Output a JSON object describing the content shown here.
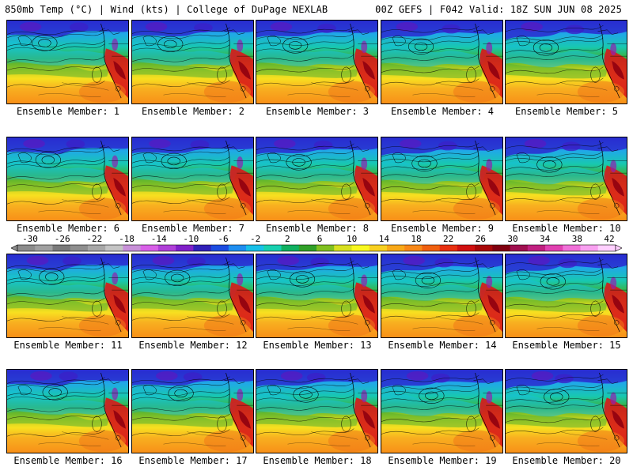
{
  "header": {
    "left": "850mb Temp (°C) | Wind (kts) | College of DuPage NEXLAB",
    "right": "00Z GEFS | F042 Valid: 18Z SUN JUN 08 2025"
  },
  "panels": [
    {
      "label": "Ensemble Member: 1"
    },
    {
      "label": "Ensemble Member: 2"
    },
    {
      "label": "Ensemble Member: 3"
    },
    {
      "label": "Ensemble Member: 4"
    },
    {
      "label": "Ensemble Member: 5"
    },
    {
      "label": "Ensemble Member: 6"
    },
    {
      "label": "Ensemble Member: 7"
    },
    {
      "label": "Ensemble Member: 8"
    },
    {
      "label": "Ensemble Member: 9"
    },
    {
      "label": "Ensemble Member: 10"
    },
    {
      "label": "Ensemble Member: 11"
    },
    {
      "label": "Ensemble Member: 12"
    },
    {
      "label": "Ensemble Member: 13"
    },
    {
      "label": "Ensemble Member: 14"
    },
    {
      "label": "Ensemble Member: 15"
    },
    {
      "label": "Ensemble Member: 16"
    },
    {
      "label": "Ensemble Member: 17"
    },
    {
      "label": "Ensemble Member: 18"
    },
    {
      "label": "Ensemble Member: 19"
    },
    {
      "label": "Ensemble Member: 20"
    }
  ],
  "colorbar": {
    "tick_labels": [
      "-30",
      "-26",
      "-22",
      "-18",
      "-14",
      "-10",
      "-6",
      "-2",
      "2",
      "6",
      "10",
      "14",
      "18",
      "22",
      "26",
      "30",
      "34",
      "38",
      "42"
    ],
    "colors": [
      "#8c8c8c",
      "#a0a0a0",
      "#7a7a7a",
      "#8e8e8e",
      "#a8a8a8",
      "#c4c4c4",
      "#c890d8",
      "#d860e8",
      "#b040d8",
      "#8020c8",
      "#3020b8",
      "#1c4ce0",
      "#1e8ef0",
      "#18c0e8",
      "#18d0b0",
      "#10b060",
      "#30a028",
      "#80c020",
      "#d8e020",
      "#f8f820",
      "#f8d020",
      "#f8a818",
      "#f88818",
      "#f06010",
      "#e83010",
      "#d01010",
      "#a80808",
      "#800010",
      "#a01050",
      "#c02080",
      "#e040b0",
      "#f070d8",
      "#f8a0f0",
      "#ffd0ff"
    ]
  }
}
